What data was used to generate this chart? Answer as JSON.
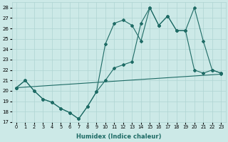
{
  "xlabel": "Humidex (Indice chaleur)",
  "xlim": [
    -0.5,
    23.5
  ],
  "ylim": [
    17,
    28.5
  ],
  "yticks": [
    17,
    18,
    19,
    20,
    21,
    22,
    23,
    24,
    25,
    26,
    27,
    28
  ],
  "xticks": [
    0,
    1,
    2,
    3,
    4,
    5,
    6,
    7,
    8,
    9,
    10,
    11,
    12,
    13,
    14,
    15,
    16,
    17,
    18,
    19,
    20,
    21,
    22,
    23
  ],
  "bg_color": "#cce9e7",
  "grid_color": "#afd4d2",
  "line_color": "#1e6b65",
  "line1_x": [
    0,
    1,
    2,
    3,
    4,
    5,
    6,
    7,
    8,
    9,
    10,
    11,
    12,
    13,
    14,
    15,
    16,
    17,
    18,
    19,
    20,
    21,
    22,
    23
  ],
  "line1_y": [
    20.3,
    21.0,
    20.0,
    19.2,
    18.9,
    18.3,
    17.9,
    17.3,
    18.5,
    19.9,
    24.5,
    26.5,
    26.8,
    26.3,
    24.8,
    28.0,
    26.3,
    27.2,
    25.8,
    25.8,
    28.0,
    24.8,
    22.0,
    21.7
  ],
  "line2_x": [
    0,
    1,
    2,
    3,
    4,
    5,
    6,
    7,
    8,
    9,
    10,
    11,
    12,
    13,
    14,
    15,
    16,
    17,
    18,
    19,
    20,
    21,
    22,
    23
  ],
  "line2_y": [
    20.3,
    21.0,
    20.0,
    19.2,
    18.9,
    18.3,
    17.9,
    17.3,
    18.5,
    19.9,
    21.0,
    22.2,
    22.5,
    22.8,
    26.5,
    28.0,
    26.3,
    27.2,
    25.8,
    25.8,
    22.0,
    21.7,
    22.0,
    21.7
  ],
  "line3_x": [
    0,
    23
  ],
  "line3_y": [
    20.3,
    21.6
  ]
}
